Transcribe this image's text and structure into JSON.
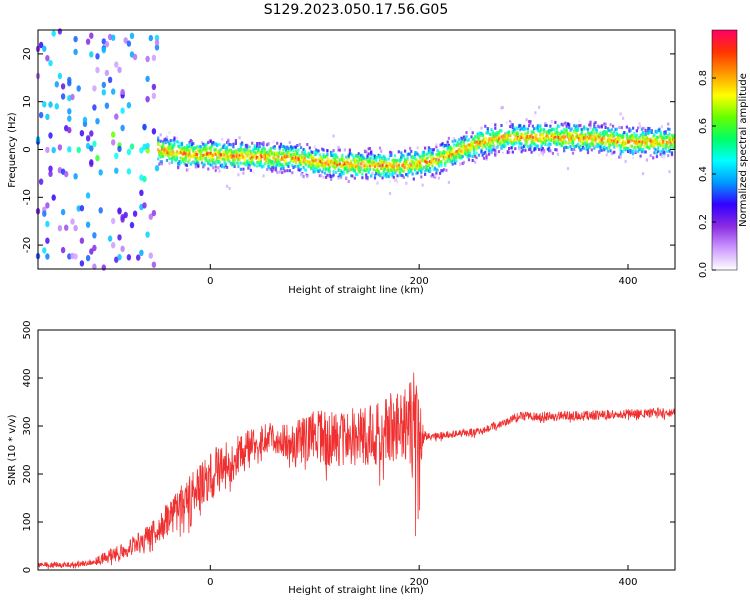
{
  "title": "S129.2023.050.17.56.G05",
  "colors": {
    "snr_line": "#f03030",
    "colormap": [
      "#ffffff",
      "#cc99ff",
      "#8a2be2",
      "#3300ff",
      "#0099ff",
      "#00ffff",
      "#00ff66",
      "#66ff00",
      "#ffff00",
      "#ff9900",
      "#ff3300",
      "#ff0066"
    ]
  },
  "chart_data": [
    {
      "type": "heatmap",
      "name": "spectrogram",
      "xlabel": "Height of straight line (km)",
      "ylabel": "Frequency (Hz)",
      "xlim": [
        -165,
        445
      ],
      "ylim": [
        -25,
        25
      ],
      "x_ticks": [
        0,
        200,
        400
      ],
      "y_ticks": [
        -20,
        -10,
        0,
        10,
        20
      ],
      "colorbar": {
        "label": "Normalized spectral amplitude",
        "range": [
          0.0,
          1.0
        ],
        "ticks": [
          0.0,
          0.2,
          0.4,
          0.6,
          0.8
        ]
      },
      "ridge": {
        "x": [
          -50,
          -40,
          -20,
          0,
          20,
          40,
          60,
          80,
          100,
          120,
          140,
          160,
          180,
          200,
          220,
          240,
          260,
          280,
          320,
          360,
          380,
          400,
          445
        ],
        "freq": [
          0,
          -0.5,
          -1,
          -1,
          -1.3,
          -1.5,
          -1.6,
          -1.8,
          -2.6,
          -3,
          -3.2,
          -3.3,
          -3.4,
          -3,
          -2,
          0,
          1.5,
          2.5,
          2.6,
          2.5,
          2.1,
          1.6,
          1.6
        ]
      }
    },
    {
      "type": "line",
      "name": "snr",
      "xlabel": "Height of straight line (km)",
      "ylabel": "SNR (10 * v/v)",
      "xlim": [
        -165,
        445
      ],
      "ylim": [
        0,
        500
      ],
      "x_ticks": [
        0,
        200,
        400
      ],
      "y_ticks": [
        0,
        100,
        200,
        300,
        400,
        500
      ],
      "envelope": {
        "x": [
          -165,
          -130,
          -110,
          -90,
          -70,
          -50,
          -30,
          -10,
          5,
          20,
          30,
          50,
          80,
          100,
          120,
          150,
          170,
          190,
          198,
          200,
          205,
          220,
          260,
          290,
          300,
          320,
          360,
          400,
          445
        ],
        "mean": [
          10,
          12,
          18,
          35,
          55,
          85,
          130,
          170,
          205,
          225,
          250,
          275,
          270,
          280,
          272,
          280,
          290,
          300,
          290,
          280,
          280,
          280,
          290,
          315,
          320,
          320,
          322,
          325,
          330
        ],
        "spread": [
          6,
          6,
          8,
          18,
          20,
          30,
          45,
          50,
          55,
          45,
          35,
          30,
          40,
          55,
          60,
          65,
          75,
          90,
          150,
          120,
          10,
          8,
          8,
          10,
          10,
          10,
          10,
          10,
          10
        ]
      }
    }
  ]
}
